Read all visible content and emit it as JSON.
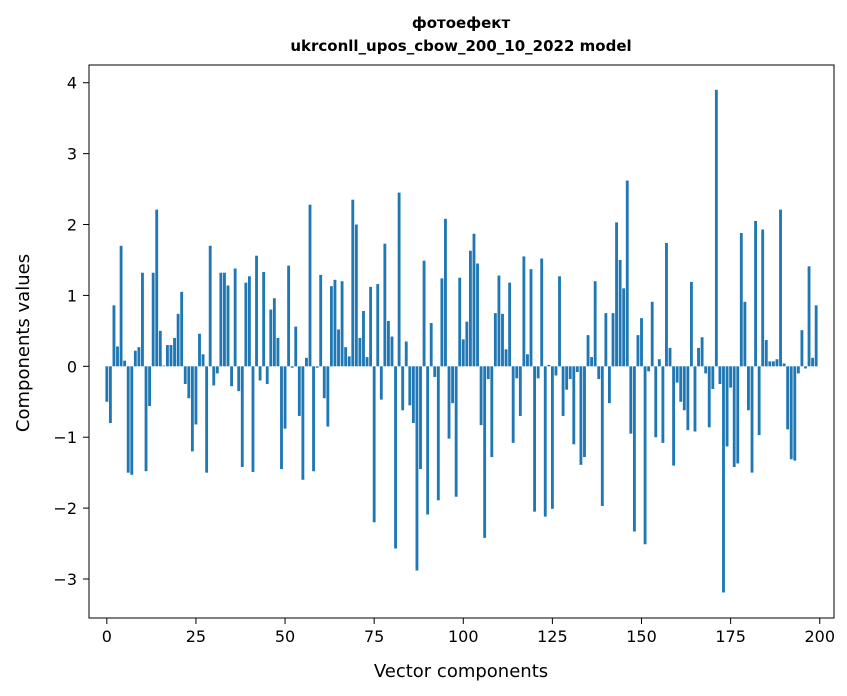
{
  "chart_data": {
    "type": "bar",
    "title": "фотоефект",
    "subtitle": "ukrconll_upos_cbow_200_10_2022 model",
    "xlabel": "Vector components",
    "ylabel": "Components values",
    "xlim": [
      -5,
      204
    ],
    "ylim": [
      -3.55,
      4.25
    ],
    "xticks": [
      0,
      25,
      50,
      75,
      100,
      125,
      150,
      175,
      200
    ],
    "xtick_labels": [
      "0",
      "25",
      "50",
      "75",
      "100",
      "125",
      "150",
      "175",
      "200"
    ],
    "yticks": [
      -3,
      -2,
      -1,
      0,
      1,
      2,
      3,
      4
    ],
    "ytick_labels": [
      "−3",
      "−2",
      "−1",
      "0",
      "1",
      "2",
      "3",
      "4"
    ],
    "bar_color": "#1f77b4",
    "grid": false,
    "x": [
      0,
      1,
      2,
      3,
      4,
      5,
      6,
      7,
      8,
      9,
      10,
      11,
      12,
      13,
      14,
      15,
      16,
      17,
      18,
      19,
      20,
      21,
      22,
      23,
      24,
      25,
      26,
      27,
      28,
      29,
      30,
      31,
      32,
      33,
      34,
      35,
      36,
      37,
      38,
      39,
      40,
      41,
      42,
      43,
      44,
      45,
      46,
      47,
      48,
      49,
      50,
      51,
      52,
      53,
      54,
      55,
      56,
      57,
      58,
      59,
      60,
      61,
      62,
      63,
      64,
      65,
      66,
      67,
      68,
      69,
      70,
      71,
      72,
      73,
      74,
      75,
      76,
      77,
      78,
      79,
      80,
      81,
      82,
      83,
      84,
      85,
      86,
      87,
      88,
      89,
      90,
      91,
      92,
      93,
      94,
      95,
      96,
      97,
      98,
      99,
      100,
      101,
      102,
      103,
      104,
      105,
      106,
      107,
      108,
      109,
      110,
      111,
      112,
      113,
      114,
      115,
      116,
      117,
      118,
      119,
      120,
      121,
      122,
      123,
      124,
      125,
      126,
      127,
      128,
      129,
      130,
      131,
      132,
      133,
      134,
      135,
      136,
      137,
      138,
      139,
      140,
      141,
      142,
      143,
      144,
      145,
      146,
      147,
      148,
      149,
      150,
      151,
      152,
      153,
      154,
      155,
      156,
      157,
      158,
      159,
      160,
      161,
      162,
      163,
      164,
      165,
      166,
      167,
      168,
      169,
      170,
      171,
      172,
      173,
      174,
      175,
      176,
      177,
      178,
      179,
      180,
      181,
      182,
      183,
      184,
      185,
      186,
      187,
      188,
      189,
      190,
      191,
      192,
      193,
      194,
      195,
      196,
      197,
      198,
      199
    ],
    "values": [
      -0.5,
      -0.8,
      0.86,
      0.28,
      1.7,
      0.08,
      -1.5,
      -1.53,
      0.22,
      0.27,
      1.32,
      -1.48,
      -0.56,
      1.32,
      2.21,
      0.5,
      0.01,
      0.3,
      0.3,
      0.4,
      0.74,
      1.05,
      -0.25,
      -0.45,
      -1.2,
      -0.82,
      0.46,
      0.17,
      -1.5,
      1.7,
      -0.27,
      -0.1,
      1.32,
      1.32,
      1.14,
      -0.28,
      1.38,
      -0.35,
      -1.42,
      1.18,
      1.27,
      -1.49,
      1.56,
      -0.2,
      1.33,
      -0.25,
      0.8,
      0.96,
      0.4,
      -1.45,
      -0.88,
      1.42,
      -0.02,
      0.56,
      -0.7,
      -1.6,
      0.12,
      2.28,
      -1.48,
      -0.02,
      1.29,
      -0.45,
      -0.85,
      1.13,
      1.22,
      0.52,
      1.2,
      0.27,
      0.14,
      2.35,
      2.0,
      0.4,
      0.78,
      0.13,
      1.12,
      -2.2,
      1.16,
      -0.47,
      1.73,
      0.64,
      0.42,
      -2.57,
      2.45,
      -0.62,
      0.35,
      -0.55,
      -0.8,
      -2.88,
      -1.45,
      1.49,
      -2.09,
      0.61,
      -0.15,
      -1.89,
      1.24,
      2.08,
      -1.02,
      -0.52,
      -1.84,
      1.25,
      0.38,
      0.63,
      1.63,
      1.87,
      1.45,
      -0.83,
      -2.42,
      -0.18,
      -1.28,
      0.75,
      1.28,
      0.74,
      0.24,
      1.18,
      -1.08,
      -0.17,
      -0.7,
      1.55,
      0.17,
      1.37,
      -2.05,
      -0.17,
      1.52,
      -2.12,
      0.02,
      -2.01,
      -0.13,
      1.27,
      -0.7,
      -0.33,
      -0.18,
      -1.1,
      -0.08,
      -1.39,
      -1.28,
      0.44,
      0.13,
      1.2,
      -0.18,
      -1.97,
      0.75,
      -0.52,
      0.75,
      2.03,
      1.5,
      1.1,
      2.62,
      -0.95,
      -2.33,
      0.44,
      0.68,
      -2.51,
      -0.07,
      0.91,
      -1.0,
      0.1,
      -1.08,
      1.74,
      0.26,
      -1.4,
      -0.23,
      -0.5,
      -0.62,
      -0.9,
      1.19,
      -0.92,
      0.26,
      0.41,
      -0.1,
      -0.86,
      -0.32,
      3.9,
      -0.25,
      -3.19,
      -1.13,
      -0.3,
      -1.42,
      -1.37,
      1.88,
      0.91,
      -0.62,
      -1.5,
      2.05,
      -0.97,
      1.93,
      0.37,
      0.07,
      0.07,
      0.1,
      2.21,
      0.04,
      -0.89,
      -1.31,
      -1.33,
      -0.1,
      0.51,
      -0.03,
      1.41,
      0.12,
      0.86
    ]
  }
}
